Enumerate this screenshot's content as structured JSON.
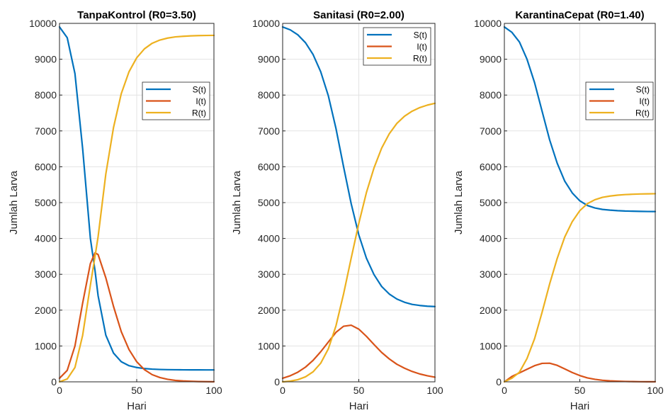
{
  "chart_data": [
    {
      "type": "line",
      "title": "TanpaKontrol (R0=3.50)",
      "xlabel": "Hari",
      "ylabel": "Jumlah Larva",
      "xlim": [
        0,
        100
      ],
      "ylim": [
        0,
        10000
      ],
      "xticks": [
        "0",
        "50",
        "100"
      ],
      "yticks": [
        "0",
        "1000",
        "2000",
        "3000",
        "4000",
        "5000",
        "6000",
        "7000",
        "8000",
        "9000",
        "10000"
      ],
      "grid": true,
      "legend": "top-right",
      "x": [
        0,
        5,
        10,
        15,
        20,
        23,
        25,
        30,
        35,
        40,
        45,
        50,
        55,
        60,
        65,
        70,
        75,
        80,
        85,
        90,
        95,
        100
      ],
      "series": [
        {
          "name": "S(t)",
          "color": "#0072BD",
          "values": [
            9900,
            9600,
            8600,
            6500,
            4000,
            3100,
            2400,
            1300,
            800,
            560,
            450,
            400,
            370,
            355,
            345,
            340,
            337,
            335,
            334,
            333,
            332,
            332
          ]
        },
        {
          "name": "I(t)",
          "color": "#D95319",
          "values": [
            100,
            320,
            1000,
            2200,
            3300,
            3600,
            3550,
            2900,
            2100,
            1400,
            900,
            560,
            340,
            200,
            120,
            70,
            40,
            25,
            15,
            8,
            5,
            3
          ]
        },
        {
          "name": "R(t)",
          "color": "#EDB120",
          "values": [
            0,
            80,
            400,
            1300,
            2700,
            3500,
            4050,
            5800,
            7100,
            8040,
            8650,
            9040,
            9290,
            9445,
            9535,
            9590,
            9623,
            9640,
            9651,
            9659,
            9663,
            9665
          ]
        }
      ]
    },
    {
      "type": "line",
      "title": "Sanitasi (R0=2.00)",
      "xlabel": "Hari",
      "ylabel": "Jumlah Larva",
      "xlim": [
        0,
        100
      ],
      "ylim": [
        0,
        10000
      ],
      "xticks": [
        "0",
        "50",
        "100"
      ],
      "yticks": [
        "0",
        "1000",
        "2000",
        "3000",
        "4000",
        "5000",
        "6000",
        "7000",
        "8000",
        "9000",
        "10000"
      ],
      "grid": true,
      "legend": "top-right",
      "x": [
        0,
        5,
        10,
        15,
        20,
        25,
        30,
        35,
        40,
        45,
        50,
        55,
        60,
        65,
        70,
        75,
        80,
        85,
        90,
        95,
        100
      ],
      "series": [
        {
          "name": "S(t)",
          "color": "#0072BD",
          "values": [
            9900,
            9820,
            9680,
            9460,
            9130,
            8650,
            7980,
            7070,
            6000,
            4970,
            4100,
            3450,
            2990,
            2660,
            2450,
            2310,
            2220,
            2160,
            2130,
            2110,
            2100
          ]
        },
        {
          "name": "I(t)",
          "color": "#D95319",
          "values": [
            100,
            170,
            270,
            410,
            600,
            840,
            1110,
            1380,
            1550,
            1580,
            1470,
            1270,
            1040,
            820,
            640,
            490,
            380,
            290,
            220,
            170,
            130
          ]
        },
        {
          "name": "R(t)",
          "color": "#EDB120",
          "values": [
            0,
            20,
            60,
            140,
            280,
            520,
            920,
            1560,
            2450,
            3450,
            4420,
            5280,
            5970,
            6520,
            6920,
            7210,
            7410,
            7550,
            7650,
            7720,
            7770
          ]
        }
      ]
    },
    {
      "type": "line",
      "title": "KarantinaCepat (R0=1.40)",
      "xlabel": "Hari",
      "ylabel": "Jumlah Larva",
      "xlim": [
        0,
        100
      ],
      "ylim": [
        0,
        10000
      ],
      "xticks": [
        "0",
        "50",
        "100"
      ],
      "yticks": [
        "0",
        "1000",
        "2000",
        "3000",
        "4000",
        "5000",
        "6000",
        "7000",
        "8000",
        "9000",
        "10000"
      ],
      "grid": true,
      "legend": "top-right",
      "x": [
        0,
        5,
        10,
        15,
        20,
        25,
        30,
        35,
        40,
        45,
        50,
        55,
        60,
        65,
        70,
        75,
        80,
        85,
        90,
        95,
        100
      ],
      "series": [
        {
          "name": "S(t)",
          "color": "#0072BD",
          "values": [
            9900,
            9750,
            9480,
            9000,
            8350,
            7550,
            6750,
            6100,
            5600,
            5270,
            5050,
            4920,
            4850,
            4810,
            4790,
            4775,
            4765,
            4760,
            4755,
            4752,
            4750
          ]
        },
        {
          "name": "I(t)",
          "color": "#D95319",
          "values": [
            0,
            150,
            250,
            350,
            450,
            515,
            520,
            460,
            360,
            260,
            175,
            110,
            70,
            43,
            27,
            17,
            11,
            7,
            4,
            3,
            2
          ]
        },
        {
          "name": "R(t)",
          "color": "#EDB120",
          "values": [
            0,
            100,
            270,
            650,
            1200,
            1940,
            2730,
            3440,
            4040,
            4470,
            4775,
            4970,
            5080,
            5147,
            5183,
            5208,
            5224,
            5233,
            5241,
            5245,
            5248
          ]
        }
      ]
    }
  ]
}
